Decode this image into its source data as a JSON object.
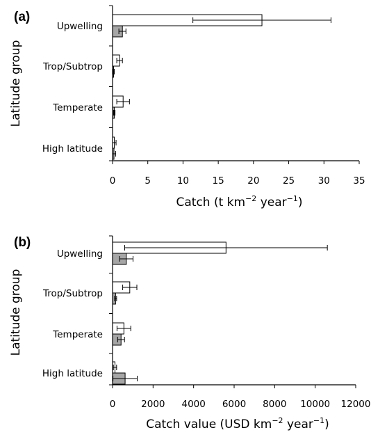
{
  "colors": {
    "series_open": "#ffffff",
    "series_shaded": "#a6a6a6",
    "axis": "#000000"
  },
  "chart_data": [
    {
      "type": "bar",
      "orientation": "horizontal",
      "panel_label": "(a)",
      "categories": [
        "Upwelling",
        "Trop/Subtrop",
        "Temperate",
        "High latitude"
      ],
      "series": [
        {
          "values": [
            21.2,
            1.0,
            1.5,
            0.25
          ],
          "errors": [
            9.8,
            0.4,
            0.9,
            0.25
          ],
          "fill": "#ffffff"
        },
        {
          "values": [
            1.4,
            0.15,
            0.25,
            0.2
          ],
          "errors": [
            0.5,
            0.1,
            0.1,
            0.25
          ],
          "fill": "#a6a6a6"
        }
      ],
      "ylabel": "Latitude group",
      "xlabel": {
        "pre": "Catch (t km",
        "sup1": "−2",
        "mid": " year",
        "sup2": "−1",
        "post": ")"
      },
      "xlim": [
        0,
        35
      ],
      "xticks": [
        0,
        5,
        10,
        15,
        20,
        25,
        30,
        35
      ]
    },
    {
      "type": "bar",
      "orientation": "horizontal",
      "panel_label": "(b)",
      "categories": [
        "Upwelling",
        "Trop/Subtrop",
        "Temperate",
        "High latitude"
      ],
      "series": [
        {
          "values": [
            5600,
            850,
            560,
            120
          ],
          "errors": [
            5000,
            350,
            340,
            80
          ],
          "fill": "#ffffff"
        },
        {
          "values": [
            680,
            150,
            420,
            620
          ],
          "errors": [
            330,
            50,
            170,
            600
          ],
          "fill": "#a6a6a6"
        }
      ],
      "ylabel": "Latitude group",
      "xlabel": {
        "pre": "Catch value (USD km",
        "sup1": "−2",
        "mid": " year",
        "sup2": "−1",
        "post": ")"
      },
      "xlim": [
        0,
        12000
      ],
      "xticks": [
        0,
        2000,
        4000,
        6000,
        8000,
        10000,
        12000
      ]
    }
  ]
}
